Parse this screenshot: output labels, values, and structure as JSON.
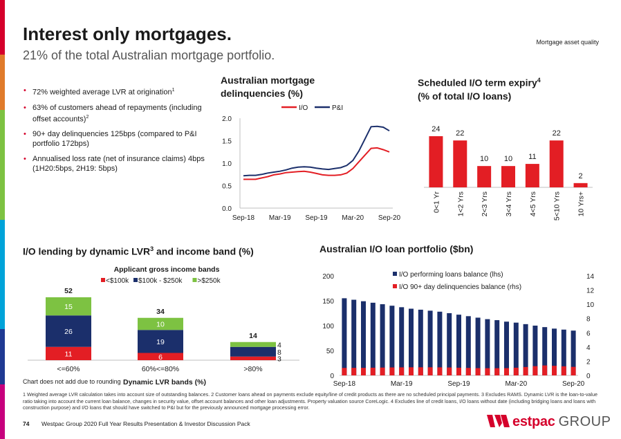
{
  "page": {
    "title": "Interest only mortgages.",
    "subtitle": "21% of the total Australian mortgage portfolio.",
    "tag": "Mortgage asset quality"
  },
  "bullets": [
    {
      "text": "72% weighted average LVR at origination",
      "sup": "1"
    },
    {
      "text": "63% of customers ahead of repayments (including offset accounts)",
      "sup": "2"
    },
    {
      "text": "90+ day delinquencies 125bps (compared to P&I portfolio 172bps)",
      "sup": ""
    },
    {
      "text": "Annualised loss rate (net of insurance claims) 4bps (1H20:5bps, 2H19: 5bps)",
      "sup": ""
    }
  ],
  "colors": {
    "red": "#d5002b",
    "bar_red": "#e31e24",
    "navy": "#1f3a93",
    "dark_navy": "#1b2f6b",
    "green": "#7dc242",
    "axis": "#bfbfbf",
    "side_bar": [
      "#d5002b",
      "#e07b2b",
      "#7dc242",
      "#7dc242",
      "#00a3d9",
      "#00a3d9",
      "#1f3a93",
      "#c7007d"
    ]
  },
  "chart_data": [
    {
      "id": "delinquencies",
      "type": "line",
      "title": "Australian mortgage delinquencies (%)",
      "x": [
        "Sep-18",
        "Oct-18",
        "Nov-18",
        "Dec-18",
        "Jan-19",
        "Feb-19",
        "Mar-19",
        "Apr-19",
        "May-19",
        "Jun-19",
        "Jul-19",
        "Aug-19",
        "Sep-19",
        "Oct-19",
        "Nov-19",
        "Dec-19",
        "Jan-20",
        "Feb-20",
        "Mar-20",
        "Apr-20",
        "May-20",
        "Jun-20",
        "Jul-20",
        "Aug-20",
        "Sep-20"
      ],
      "x_ticks": [
        "Sep-18",
        "Mar-19",
        "Sep-19",
        "Mar-20",
        "Sep-20"
      ],
      "series": [
        {
          "name": "I/O",
          "color": "#e31e24",
          "values": [
            0.64,
            0.64,
            0.64,
            0.67,
            0.7,
            0.74,
            0.76,
            0.79,
            0.8,
            0.81,
            0.82,
            0.8,
            0.77,
            0.74,
            0.73,
            0.73,
            0.74,
            0.78,
            0.88,
            1.03,
            1.18,
            1.33,
            1.34,
            1.3,
            1.25
          ]
        },
        {
          "name": "P&I",
          "color": "#1b2f6b",
          "values": [
            0.72,
            0.73,
            0.73,
            0.75,
            0.78,
            0.8,
            0.82,
            0.85,
            0.89,
            0.91,
            0.92,
            0.91,
            0.89,
            0.87,
            0.86,
            0.88,
            0.9,
            0.95,
            1.06,
            1.27,
            1.54,
            1.81,
            1.82,
            1.8,
            1.72
          ]
        }
      ],
      "ylim": [
        0,
        2.0
      ],
      "y_ticks": [
        "0.0",
        "0.5",
        "1.0",
        "1.5",
        "2.0"
      ],
      "xlabel": "",
      "ylabel": "",
      "legend": "top-center"
    },
    {
      "id": "term_expiry",
      "type": "bar",
      "title": "Scheduled I/O term expiry",
      "title_sup": "4",
      "title_line2": "(% of total I/O loans)",
      "categories": [
        "0<1 Yr",
        "1<2 Yrs",
        "2<3 Yrs",
        "3<4 Yrs",
        "4<5 Yrs",
        "5<10 Yrs",
        "10 Yrs+"
      ],
      "values": [
        24,
        22,
        10,
        10,
        11,
        22,
        2
      ],
      "labels": [
        "24",
        "22",
        "10",
        "10",
        "11",
        "22",
        "2"
      ],
      "ylim": [
        0,
        30
      ]
    },
    {
      "id": "lvr_income",
      "type": "stacked-bar",
      "title": "I/O lending by dynamic LVR",
      "title_sup": "3",
      "title_rest": " and income band (%)",
      "inner_title": "Applicant gross income bands",
      "xlabel": "Dynamic LVR bands (%)",
      "note": "Chart does not add due to rounding",
      "categories": [
        "<=60%",
        "60%<=80%",
        ">80%"
      ],
      "series": [
        {
          "name": "<$100k",
          "color": "#e31e24",
          "values": [
            11,
            6,
            3
          ],
          "labels": [
            "11",
            "6",
            "3"
          ]
        },
        {
          "name": "$100k - $250k",
          "color": "#1b2f6b",
          "values": [
            26,
            19,
            8
          ],
          "labels": [
            "26",
            "19",
            "8"
          ]
        },
        {
          "name": ">$250k",
          "color": "#7dc242",
          "values": [
            15,
            10,
            4
          ],
          "labels": [
            "15",
            "10",
            "4"
          ]
        }
      ],
      "totals": [
        "52",
        "34",
        "14"
      ],
      "ylim": [
        0,
        60
      ]
    },
    {
      "id": "portfolio",
      "type": "bar",
      "title": "Australian I/O loan portfolio ($bn)",
      "x": [
        "Sep-18",
        "Oct-18",
        "Nov-18",
        "Dec-18",
        "Jan-19",
        "Feb-19",
        "Mar-19",
        "Apr-19",
        "May-19",
        "Jun-19",
        "Jul-19",
        "Aug-19",
        "Sep-19",
        "Oct-19",
        "Nov-19",
        "Dec-19",
        "Jan-20",
        "Feb-20",
        "Mar-20",
        "Apr-20",
        "May-20",
        "Jun-20",
        "Jul-20",
        "Aug-20",
        "Sep-20"
      ],
      "x_ticks": [
        "Sep-18",
        "Mar-19",
        "Sep-19",
        "Mar-20",
        "Sep-20"
      ],
      "series": [
        {
          "name": "I/O performing loans balance (lhs)",
          "color": "#1b2f6b",
          "axis": "left",
          "values": [
            155,
            152,
            149,
            146,
            143,
            140,
            137,
            134,
            132,
            130,
            128,
            125,
            122,
            119,
            116,
            113,
            111,
            108,
            106,
            103,
            100,
            97,
            94,
            92,
            90
          ]
        },
        {
          "name": "I/O 90+ day delinquencies balance (rhs)",
          "color": "#e31e24",
          "axis": "right",
          "values": [
            1.05,
            1.06,
            1.06,
            1.08,
            1.1,
            1.12,
            1.13,
            1.14,
            1.14,
            1.14,
            1.13,
            1.11,
            1.08,
            1.05,
            1.02,
            1.01,
            1.01,
            1.02,
            1.08,
            1.18,
            1.3,
            1.4,
            1.35,
            1.28,
            1.2
          ]
        }
      ],
      "ylim_left": [
        0,
        200
      ],
      "y_ticks_left": [
        "0",
        "50",
        "100",
        "150",
        "200"
      ],
      "ylim_right": [
        0,
        14
      ],
      "y_ticks_right": [
        "0",
        "2",
        "4",
        "6",
        "8",
        "10",
        "12",
        "14"
      ],
      "legend": "top-left"
    }
  ],
  "footnote": "1 Weighted average LVR calculation takes into account size of outstanding balances. 2 Customer loans ahead on payments exclude equity/line of credit products as there are no scheduled principal payments.  3 Excludes RAMS. Dynamic LVR is the loan-to-value ratio taking into account the current loan balance, changes in security value, offset account balances and other loan adjustments.  Property valuation source CoreLogic. 4 Excludes line of credit loans, I/O loans without date (including bridging loans and loans with construction purpose) and I/O loans that should have switched to P&I but for the previously announced mortgage processing error.",
  "footer": {
    "page_number": "74",
    "text": "Westpac Group 2020 Full Year Results Presentation & Investor Discussion Pack"
  },
  "logo": {
    "word": "estpac",
    "group": "GROUP"
  }
}
